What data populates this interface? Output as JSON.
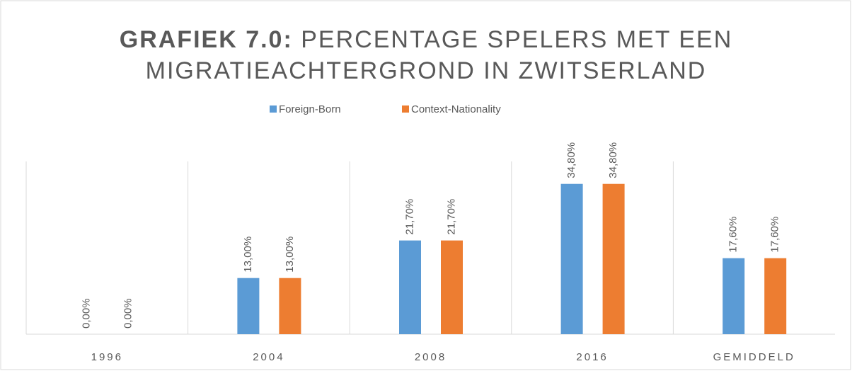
{
  "chart_data": {
    "type": "bar",
    "title_label": "GRAFIEK 7.0:",
    "title": "PERCENTAGE SPELERS MET EEN MIGRATIEACHTERGROND IN ZWITSERLAND",
    "categories": [
      "1996",
      "2004",
      "2008",
      "2016",
      "GEMIDDELD"
    ],
    "series": [
      {
        "name": "Foreign-Born",
        "color": "#5b9bd5",
        "values": [
          0,
          13,
          21.7,
          34.8,
          17.6
        ],
        "value_labels": [
          "0,00%",
          "13,00%",
          "21,70%",
          "34,80%",
          "17,60%"
        ]
      },
      {
        "name": "Context-Nationality",
        "color": "#ed7d31",
        "values": [
          0,
          13,
          21.7,
          34.8,
          17.6
        ],
        "value_labels": [
          "0,00%",
          "13,00%",
          "21,70%",
          "34,80%",
          "17,60%"
        ]
      }
    ],
    "ylim": [
      0,
      40
    ]
  }
}
